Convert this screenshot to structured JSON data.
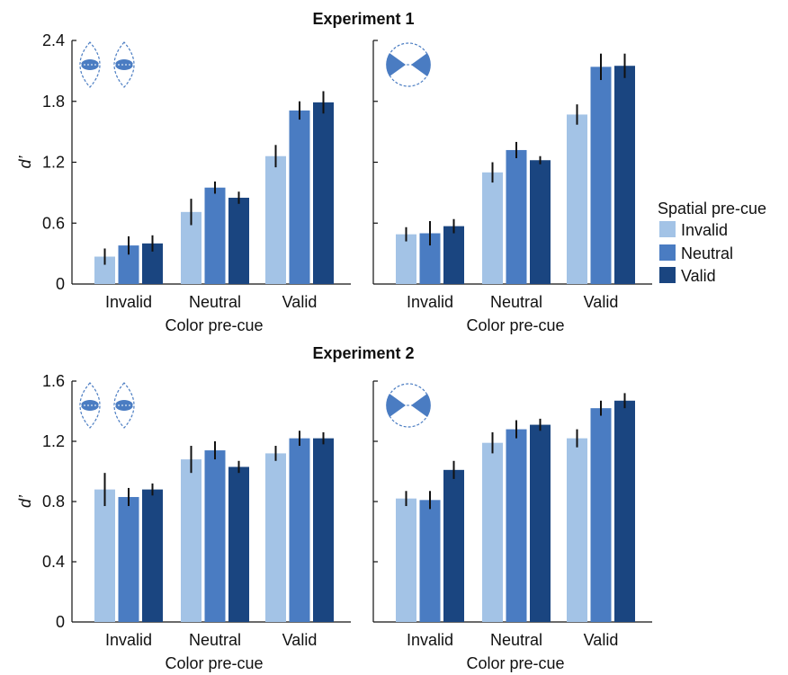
{
  "figure": {
    "colors": {
      "Invalid": "#a3c3e6",
      "Neutral": "#4a7cc2",
      "Valid": "#1a4580",
      "error_bar": "#111111",
      "icon": "#4a7cc2"
    },
    "experiments": [
      {
        "title": "Experiment 1"
      },
      {
        "title": "Experiment 2"
      }
    ],
    "legend": {
      "title": "Spatial pre-cue",
      "entries": [
        "Invalid",
        "Neutral",
        "Valid"
      ]
    }
  },
  "chart_data": [
    {
      "type": "bar",
      "title": "Experiment 1",
      "panel": "left",
      "icon": "dual-dashed-lens-cue-icon",
      "xlabel": "Color pre-cue",
      "ylabel": "d’",
      "ylim": [
        0,
        2.4
      ],
      "yticks": [
        "0",
        "0.6",
        "1.2",
        "1.8",
        "2.4"
      ],
      "categories": [
        "Invalid",
        "Neutral",
        "Valid"
      ],
      "series": [
        {
          "name": "Invalid",
          "values": [
            0.27,
            0.71,
            1.26
          ],
          "errors": [
            0.08,
            0.13,
            0.11
          ]
        },
        {
          "name": "Neutral",
          "values": [
            0.38,
            0.95,
            1.71
          ],
          "errors": [
            0.09,
            0.06,
            0.09
          ]
        },
        {
          "name": "Valid",
          "values": [
            0.4,
            0.85,
            1.79
          ],
          "errors": [
            0.08,
            0.06,
            0.11
          ]
        }
      ]
    },
    {
      "type": "bar",
      "title": "Experiment 1",
      "panel": "right",
      "icon": "solid-wedge-cue-icon",
      "xlabel": "Color pre-cue",
      "ylabel": "",
      "ylim": [
        0,
        2.4
      ],
      "yticks": [],
      "categories": [
        "Invalid",
        "Neutral",
        "Valid"
      ],
      "series": [
        {
          "name": "Invalid",
          "values": [
            0.49,
            1.1,
            1.67
          ],
          "errors": [
            0.07,
            0.1,
            0.1
          ]
        },
        {
          "name": "Neutral",
          "values": [
            0.5,
            1.32,
            2.14
          ],
          "errors": [
            0.12,
            0.08,
            0.13
          ]
        },
        {
          "name": "Valid",
          "values": [
            0.57,
            1.22,
            2.15
          ],
          "errors": [
            0.07,
            0.04,
            0.12
          ]
        }
      ]
    },
    {
      "type": "bar",
      "title": "Experiment 2",
      "panel": "left",
      "icon": "dual-dashed-lens-cue-icon",
      "xlabel": "Color pre-cue",
      "ylabel": "d’",
      "ylim": [
        0,
        1.6
      ],
      "yticks": [
        "0",
        "0.4",
        "0.8",
        "1.2",
        "1.6"
      ],
      "categories": [
        "Invalid",
        "Neutral",
        "Valid"
      ],
      "series": [
        {
          "name": "Invalid",
          "values": [
            0.88,
            1.08,
            1.12
          ],
          "errors": [
            0.11,
            0.09,
            0.05
          ]
        },
        {
          "name": "Neutral",
          "values": [
            0.83,
            1.14,
            1.22
          ],
          "errors": [
            0.06,
            0.06,
            0.05
          ]
        },
        {
          "name": "Valid",
          "values": [
            0.88,
            1.03,
            1.22
          ],
          "errors": [
            0.04,
            0.04,
            0.04
          ]
        }
      ]
    },
    {
      "type": "bar",
      "title": "Experiment 2",
      "panel": "right",
      "icon": "solid-wedge-cue-icon",
      "xlabel": "Color pre-cue",
      "ylabel": "",
      "ylim": [
        0,
        1.6
      ],
      "yticks": [],
      "categories": [
        "Invalid",
        "Neutral",
        "Valid"
      ],
      "series": [
        {
          "name": "Invalid",
          "values": [
            0.82,
            1.19,
            1.22
          ],
          "errors": [
            0.05,
            0.07,
            0.06
          ]
        },
        {
          "name": "Neutral",
          "values": [
            0.81,
            1.28,
            1.42
          ],
          "errors": [
            0.06,
            0.06,
            0.05
          ]
        },
        {
          "name": "Valid",
          "values": [
            1.01,
            1.31,
            1.47
          ],
          "errors": [
            0.06,
            0.04,
            0.05
          ]
        }
      ]
    }
  ]
}
